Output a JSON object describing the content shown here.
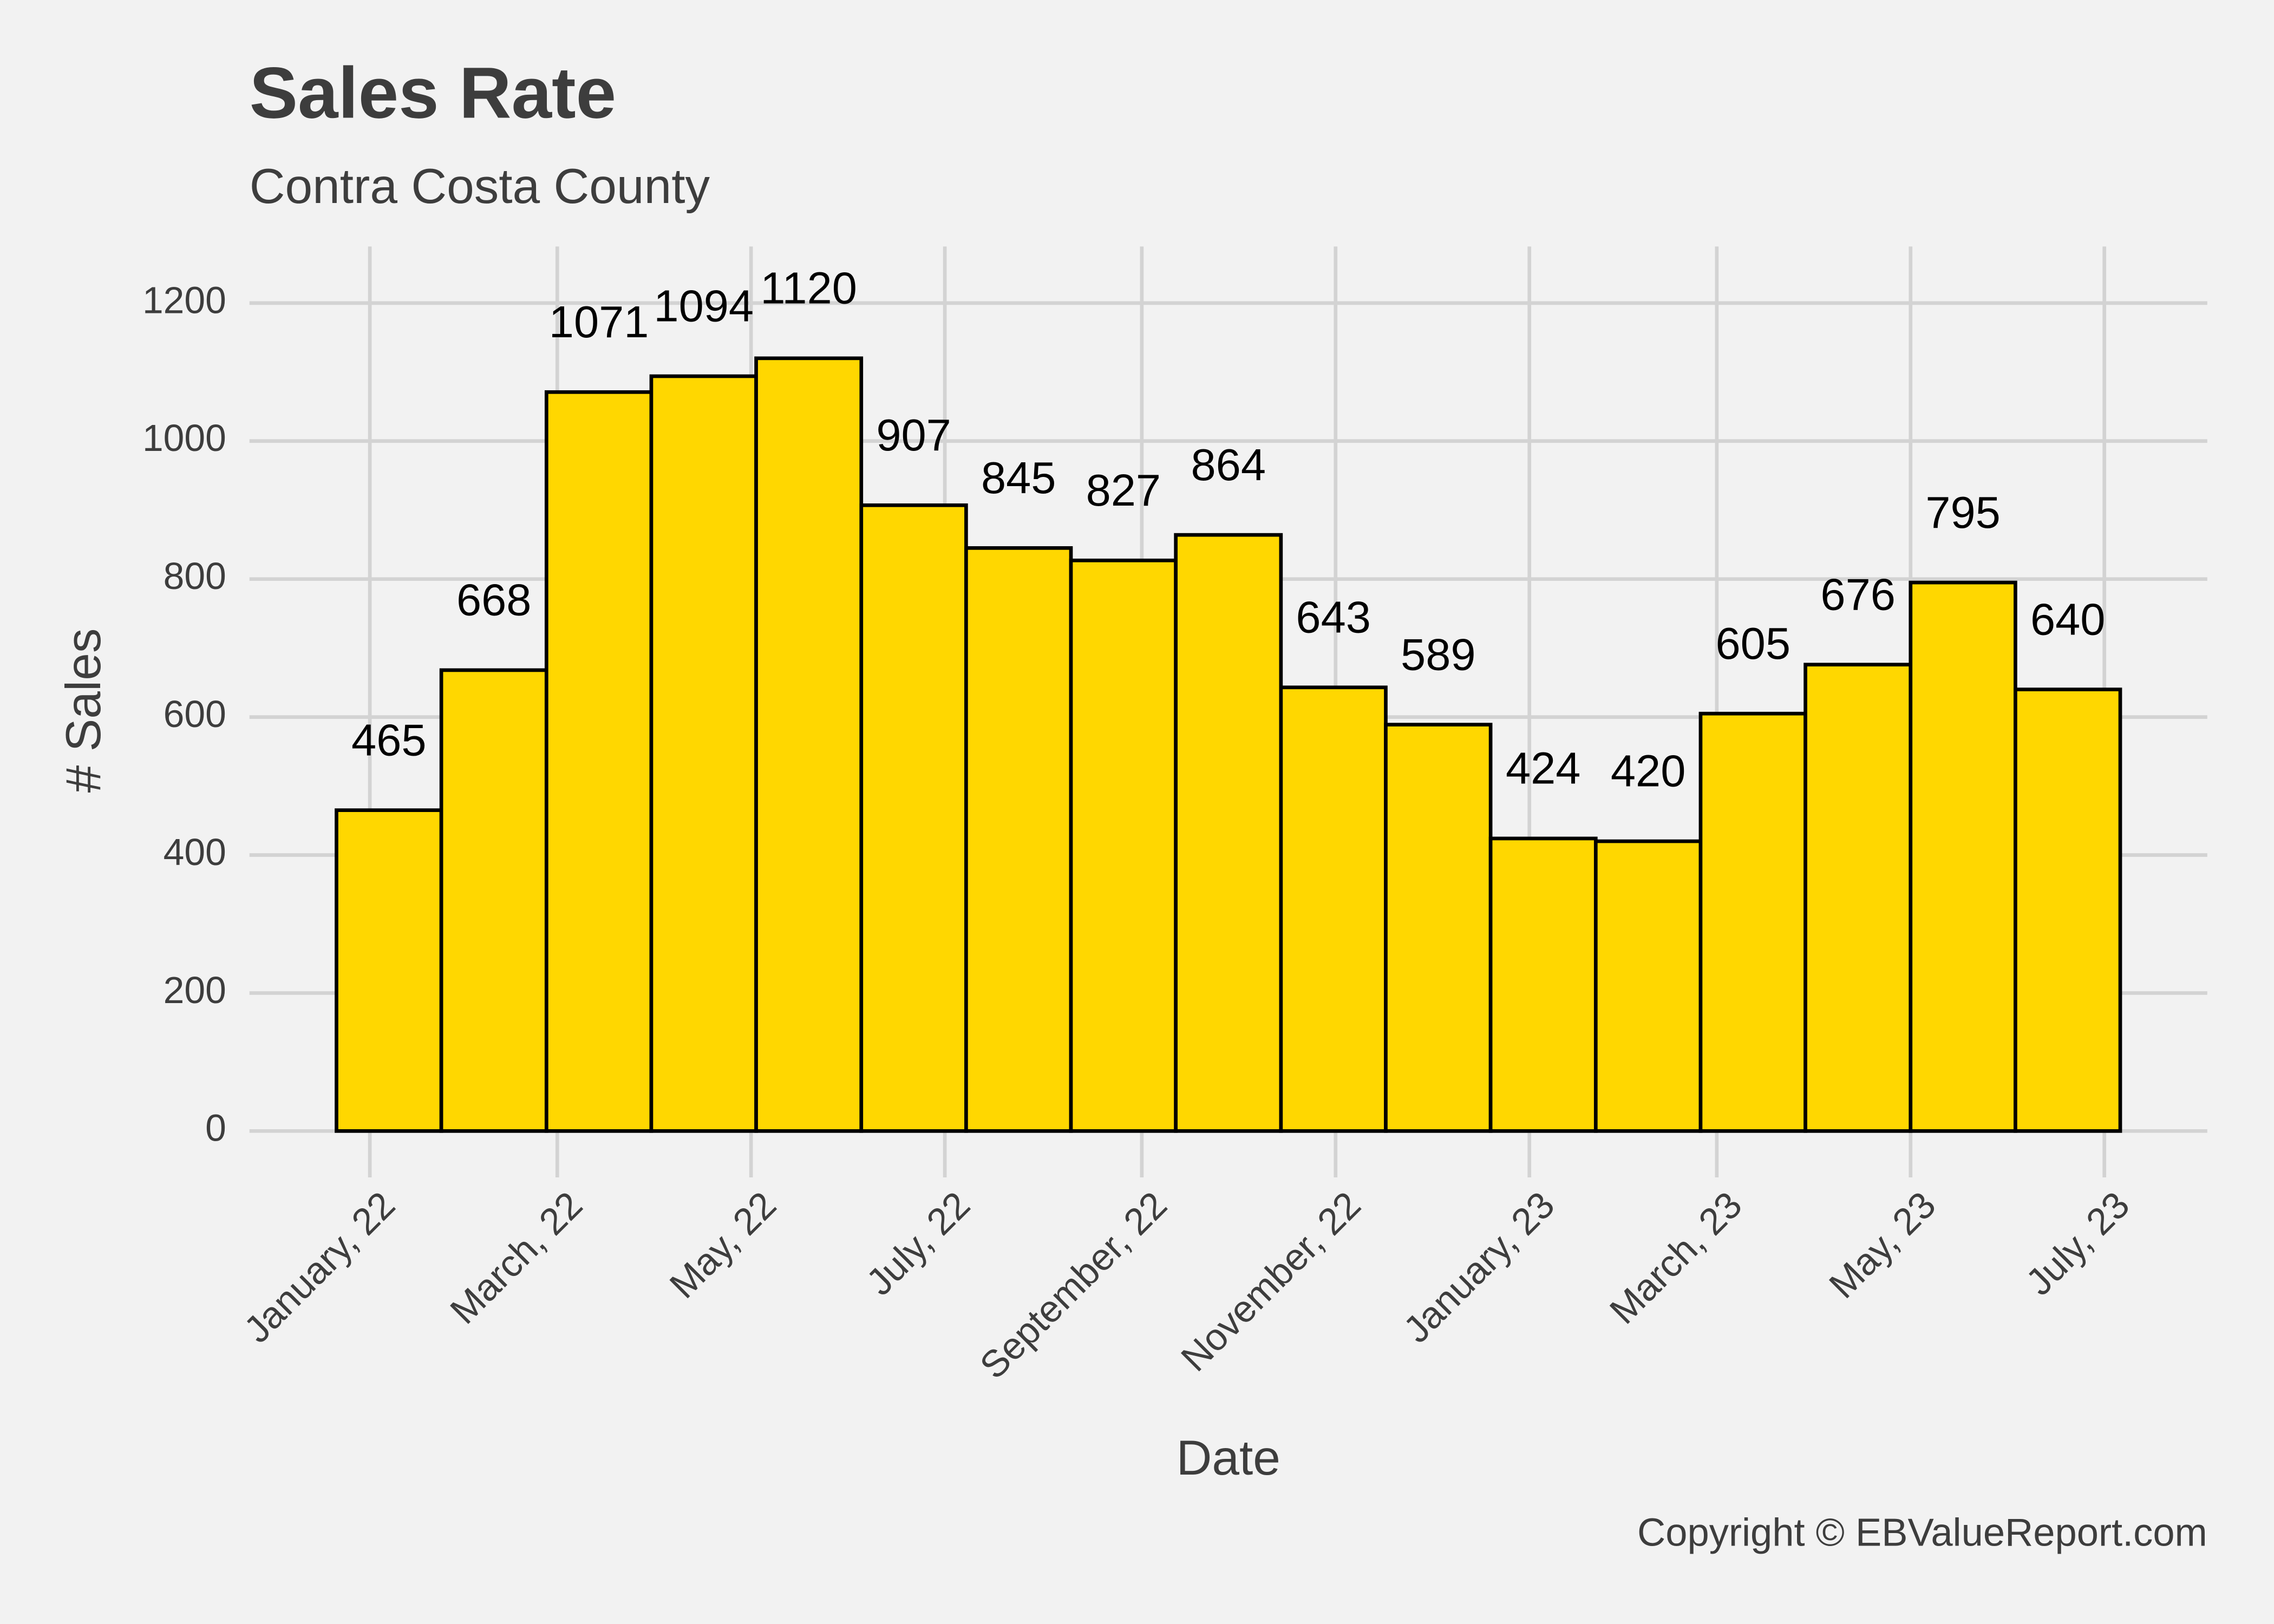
{
  "chart_data": {
    "type": "histogram",
    "title": "Sales Rate",
    "subtitle": "Contra Costa County",
    "x_label": "Date",
    "y_label": "# Sales",
    "caption": "Copyright  © EBValueReport.com",
    "bins": [
      -10.5,
      22.5,
      55.6,
      88.6,
      121.6,
      154.7,
      187.7,
      220.7,
      253.7,
      286.8,
      319.8,
      352.8,
      385.9,
      418.9,
      451.9,
      485.0,
      518.0,
      551.0
    ],
    "values": [
      465,
      668,
      1071,
      1094,
      1120,
      907,
      845,
      827,
      864,
      643,
      589,
      424,
      420,
      605,
      676,
      795,
      640
    ],
    "color": "#ffd700",
    "edge_color": "#000000",
    "xlim": [
      -37.9,
      578.4
    ],
    "xticks": [
      {
        "value": 0,
        "label": "January, 22"
      },
      {
        "value": 59,
        "label": "March, 22"
      },
      {
        "value": 120,
        "label": "May, 22"
      },
      {
        "value": 181,
        "label": "July, 22"
      },
      {
        "value": 243,
        "label": "September, 22"
      },
      {
        "value": 304,
        "label": "November, 22"
      },
      {
        "value": 365,
        "label": "January, 23"
      },
      {
        "value": 424,
        "label": "March, 23"
      },
      {
        "value": 485,
        "label": "May, 23"
      },
      {
        "value": 546,
        "label": "July, 23"
      }
    ],
    "ylim": [
      -42,
      1282
    ],
    "yticks": [
      0,
      200,
      400,
      600,
      800,
      1000,
      1200
    ],
    "grid": true
  }
}
